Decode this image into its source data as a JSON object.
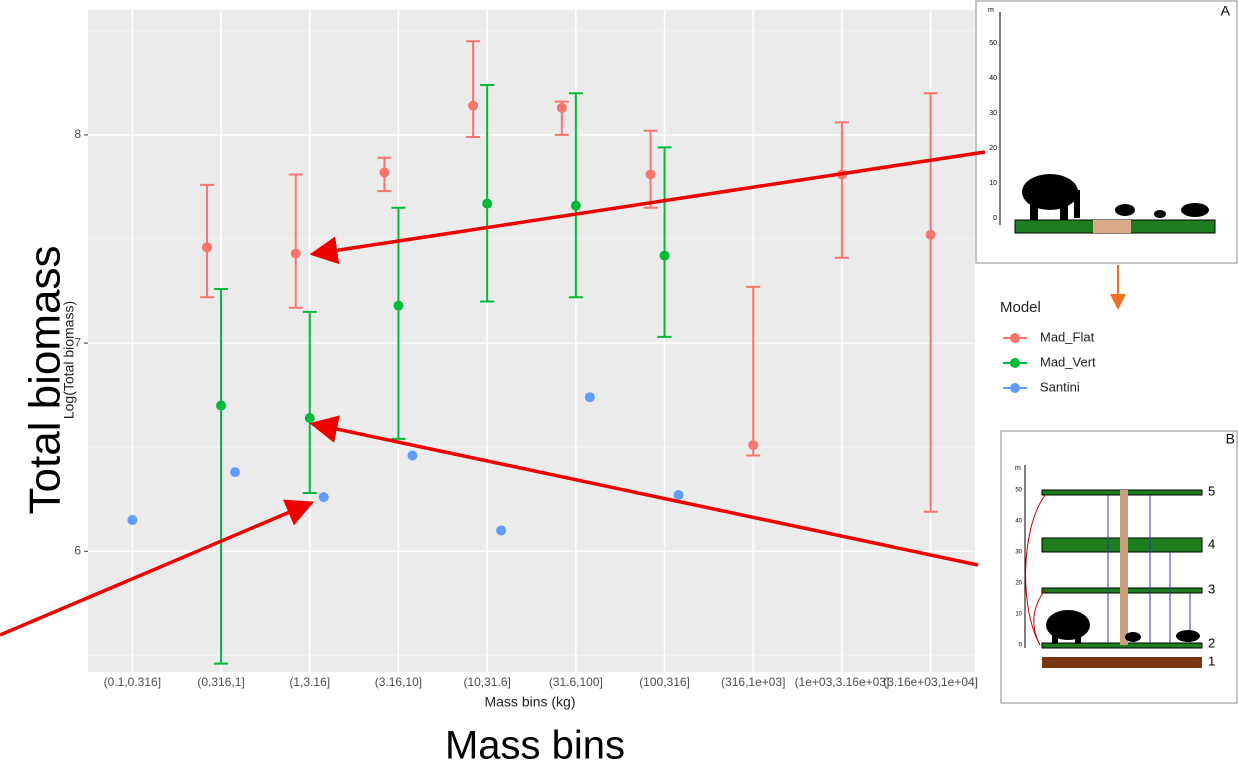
{
  "chart_data": {
    "type": "pointrange",
    "x_label": "Mass bins (kg)",
    "y_label": "Log(Total biomass)",
    "categories": [
      "(0.1,0.316]",
      "(0.316,1]",
      "(1,3.16]",
      "(3.16,10]",
      "(10,31.6]",
      "(31.6,100]",
      "(100,316]",
      "(316,1e+03]",
      "(1e+03,3.16e+03]",
      "(3.16e+03,1e+04]"
    ],
    "series": [
      {
        "name": "Mad_Flat",
        "color": "#f8766d",
        "values": [
          null,
          7.46,
          7.43,
          7.82,
          8.14,
          8.13,
          7.81,
          6.51,
          7.81,
          7.52
        ],
        "lower": [
          null,
          7.22,
          7.17,
          7.73,
          7.99,
          8.0,
          7.65,
          6.46,
          7.41,
          6.19
        ],
        "upper": [
          null,
          7.76,
          7.81,
          7.89,
          8.45,
          8.16,
          8.02,
          7.27,
          8.06,
          8.2
        ]
      },
      {
        "name": "Mad_Vert",
        "color": "#00ba38",
        "values": [
          null,
          6.7,
          6.64,
          7.18,
          7.67,
          7.66,
          7.42,
          null,
          null,
          null
        ],
        "lower": [
          null,
          5.46,
          6.28,
          6.54,
          7.2,
          7.22,
          7.03,
          null,
          null,
          null
        ],
        "upper": [
          null,
          7.26,
          7.15,
          7.65,
          8.24,
          8.2,
          7.94,
          null,
          null,
          null
        ]
      },
      {
        "name": "Santini",
        "color": "#619cff",
        "values": [
          6.15,
          6.38,
          6.26,
          6.46,
          6.1,
          6.74,
          6.27,
          null,
          null,
          null
        ]
      }
    ],
    "ylim": [
      5.42,
      8.6
    ],
    "yticks": [
      6,
      7,
      8
    ],
    "grid": true,
    "legend": {
      "title": "Model",
      "position": "right"
    }
  },
  "annotations": {
    "y_overlay": "Total biomass",
    "x_overlay": "Mass bins"
  },
  "insets": {
    "a": {
      "letter": "A",
      "axis": "m",
      "ticks": [
        "0",
        "10",
        "20",
        "30",
        "40",
        "50"
      ]
    },
    "b": {
      "letter": "B",
      "axis": "m",
      "ticks": [
        "0",
        "10",
        "20",
        "30",
        "40",
        "50"
      ],
      "levels": [
        "1",
        "2",
        "3",
        "4",
        "5"
      ]
    }
  }
}
